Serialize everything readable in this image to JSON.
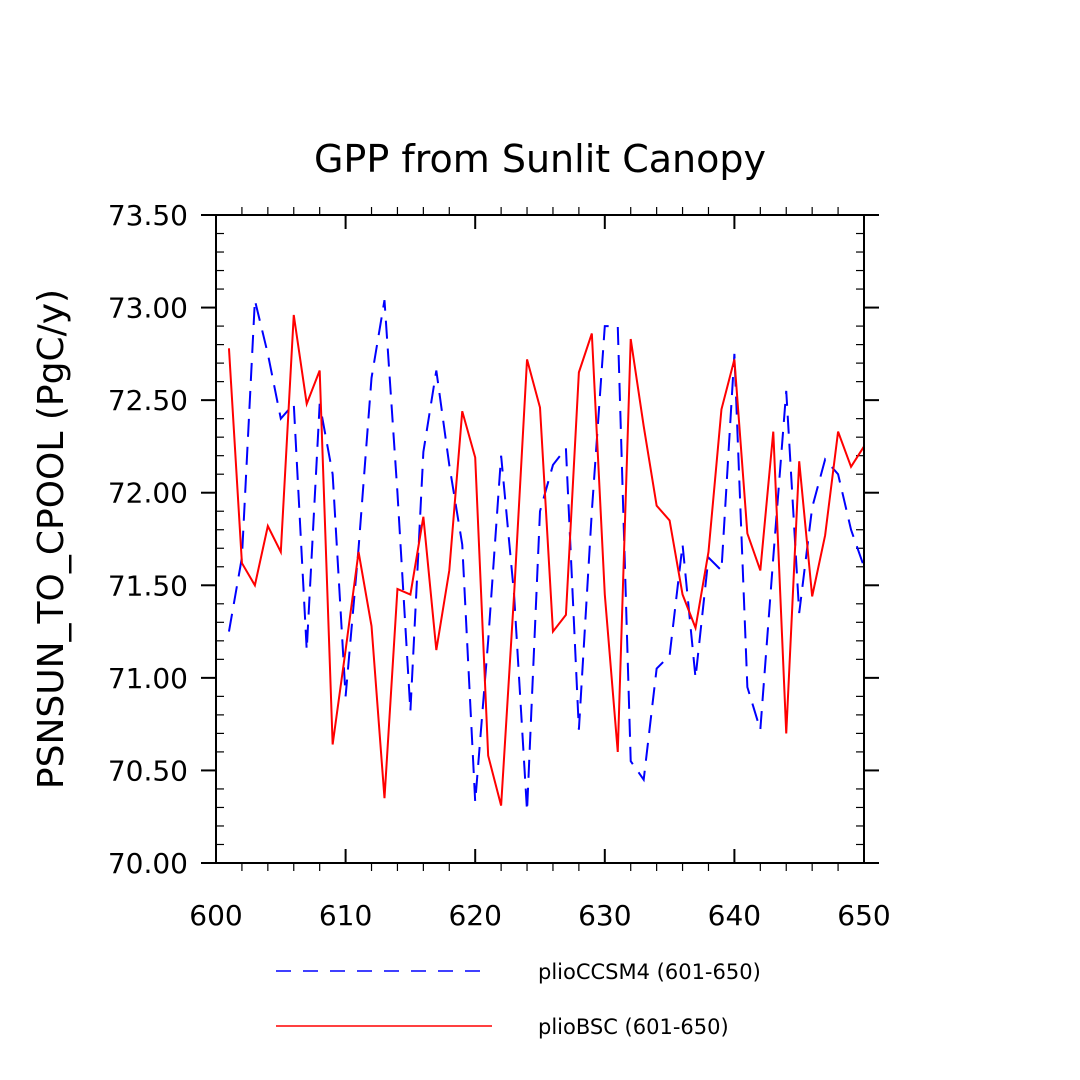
{
  "chart_data": {
    "type": "line",
    "title": "GPP from Sunlit Canopy",
    "xlabel": "",
    "ylabel": "PSNSUN_TO_CPOOL  (PgC/y)",
    "xlim": [
      600,
      650
    ],
    "ylim": [
      70.0,
      73.5
    ],
    "x_ticks": [
      600,
      610,
      620,
      630,
      640,
      650
    ],
    "x_tick_labels": [
      "600",
      "610",
      "620",
      "630",
      "640",
      "650"
    ],
    "y_ticks": [
      70.0,
      70.5,
      71.0,
      71.5,
      72.0,
      72.5,
      73.0,
      73.5
    ],
    "y_tick_labels": [
      "70.00",
      "70.50",
      "71.00",
      "71.50",
      "72.00",
      "72.50",
      "73.00",
      "73.50"
    ],
    "grid": false,
    "legend_position": "bottom",
    "x": [
      601,
      602,
      603,
      604,
      605,
      606,
      607,
      608,
      609,
      610,
      611,
      612,
      613,
      614,
      615,
      616,
      617,
      618,
      619,
      620,
      621,
      622,
      623,
      624,
      625,
      626,
      627,
      628,
      629,
      630,
      631,
      632,
      633,
      634,
      635,
      636,
      637,
      638,
      639,
      640,
      641,
      642,
      643,
      644,
      645,
      646,
      647,
      648,
      649,
      650
    ],
    "series": [
      {
        "name": "plioCCSM4 (601-650)",
        "color": "#0000ff",
        "dash": "dashed",
        "values": [
          71.25,
          71.65,
          73.04,
          72.75,
          72.4,
          72.48,
          71.15,
          72.48,
          72.1,
          70.9,
          71.7,
          72.62,
          73.04,
          72.0,
          70.82,
          72.22,
          72.66,
          72.15,
          71.72,
          70.33,
          71.2,
          72.2,
          71.45,
          70.28,
          71.9,
          72.15,
          72.24,
          70.72,
          71.9,
          72.9,
          72.9,
          70.55,
          70.45,
          71.05,
          71.12,
          71.72,
          71.0,
          71.65,
          71.58,
          72.75,
          70.95,
          70.72,
          71.65,
          72.55,
          71.35,
          71.92,
          72.18,
          72.1,
          71.8,
          71.6
        ]
      },
      {
        "name": "plioBSC (601-650)",
        "color": "#ff0000",
        "dash": "solid",
        "values": [
          72.78,
          71.62,
          71.5,
          71.82,
          71.68,
          72.96,
          72.48,
          72.66,
          70.64,
          71.15,
          71.68,
          71.28,
          70.35,
          71.48,
          71.45,
          71.87,
          71.15,
          71.58,
          72.44,
          72.19,
          70.58,
          70.31,
          71.45,
          72.72,
          72.46,
          71.25,
          71.34,
          72.65,
          72.86,
          71.45,
          70.6,
          72.83,
          72.36,
          71.93,
          71.85,
          71.45,
          71.27,
          71.68,
          72.45,
          72.72,
          71.78,
          71.58,
          72.33,
          70.7,
          72.17,
          71.44,
          71.77,
          72.33,
          72.14,
          72.25
        ]
      }
    ]
  }
}
